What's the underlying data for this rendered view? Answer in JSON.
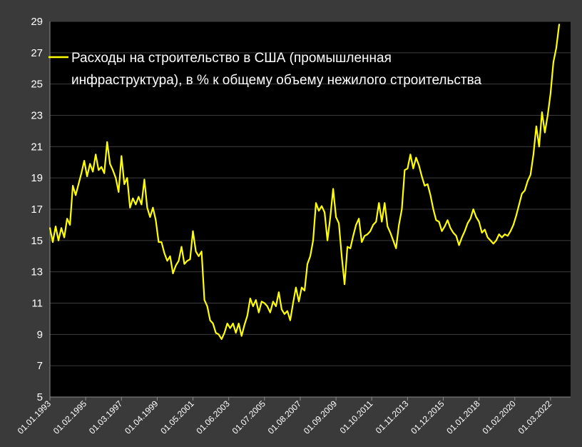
{
  "chart_data": {
    "type": "line",
    "title": "",
    "xlabel": "",
    "ylabel": "",
    "ylim": [
      5,
      29
    ],
    "yticks": [
      5,
      7,
      9,
      11,
      13,
      15,
      17,
      19,
      21,
      23,
      25,
      27,
      29
    ],
    "xtick_labels": [
      "01.01.1993",
      "01.02.1995",
      "01.03.1997",
      "01.04.1999",
      "01.05.2001",
      "01.06.2003",
      "01.07.2005",
      "01.08.2007",
      "01.09.2009",
      "01.10.2011",
      "01.11.2013",
      "01.12.2015",
      "01.01.2018",
      "01.02.2020",
      "01.03.2022"
    ],
    "x_range": [
      "1993-01",
      "2023-05"
    ],
    "grid": "horizontal",
    "legend_position": "top-left",
    "colors": {
      "background": "#3a3a3a",
      "plot_area": "#000000",
      "series": "#ffff00",
      "grid": "#3c3c3c",
      "text": "#ffffff"
    },
    "series": [
      {
        "name": "Расходы на строительство в США (промышленная инфраструктура), в % к общему объему нежилого строительства",
        "legend_lines": [
          "Расходы на строительство в США (промышленная",
          "инфраструктура), в % к общему объему нежилого строительства"
        ],
        "points": [
          [
            "1993-01",
            15.8
          ],
          [
            "1993-03",
            14.9
          ],
          [
            "1993-05",
            15.9
          ],
          [
            "1993-07",
            15.0
          ],
          [
            "1993-09",
            15.8
          ],
          [
            "1993-11",
            15.2
          ],
          [
            "1994-01",
            16.4
          ],
          [
            "1994-03",
            16.0
          ],
          [
            "1994-05",
            18.5
          ],
          [
            "1994-07",
            17.9
          ],
          [
            "1994-09",
            18.6
          ],
          [
            "1994-11",
            19.3
          ],
          [
            "1995-01",
            20.1
          ],
          [
            "1995-03",
            19.1
          ],
          [
            "1995-05",
            19.9
          ],
          [
            "1995-07",
            19.4
          ],
          [
            "1995-09",
            20.5
          ],
          [
            "1995-11",
            19.5
          ],
          [
            "1996-01",
            19.7
          ],
          [
            "1996-03",
            19.3
          ],
          [
            "1996-05",
            21.3
          ],
          [
            "1996-07",
            19.9
          ],
          [
            "1996-09",
            19.5
          ],
          [
            "1996-11",
            19.0
          ],
          [
            "1997-01",
            18.1
          ],
          [
            "1997-03",
            20.4
          ],
          [
            "1997-05",
            18.6
          ],
          [
            "1997-07",
            19.0
          ],
          [
            "1997-09",
            17.1
          ],
          [
            "1997-11",
            17.7
          ],
          [
            "1998-01",
            17.3
          ],
          [
            "1998-03",
            17.8
          ],
          [
            "1998-05",
            17.3
          ],
          [
            "1998-07",
            18.9
          ],
          [
            "1998-09",
            17.1
          ],
          [
            "1998-11",
            16.5
          ],
          [
            "1999-01",
            17.1
          ],
          [
            "1999-03",
            16.3
          ],
          [
            "1999-05",
            14.9
          ],
          [
            "1999-07",
            14.9
          ],
          [
            "1999-09",
            14.2
          ],
          [
            "1999-11",
            13.7
          ],
          [
            "2000-01",
            14.0
          ],
          [
            "2000-03",
            12.9
          ],
          [
            "2000-05",
            13.4
          ],
          [
            "2000-07",
            13.7
          ],
          [
            "2000-09",
            14.6
          ],
          [
            "2000-11",
            13.5
          ],
          [
            "2001-01",
            13.7
          ],
          [
            "2001-03",
            13.8
          ],
          [
            "2001-05",
            15.6
          ],
          [
            "2001-07",
            14.3
          ],
          [
            "2001-09",
            14.0
          ],
          [
            "2001-11",
            14.3
          ],
          [
            "2002-01",
            11.2
          ],
          [
            "2002-03",
            10.8
          ],
          [
            "2002-05",
            9.9
          ],
          [
            "2002-07",
            9.7
          ],
          [
            "2002-09",
            9.1
          ],
          [
            "2002-11",
            9.0
          ],
          [
            "2003-01",
            8.7
          ],
          [
            "2003-03",
            9.1
          ],
          [
            "2003-05",
            9.7
          ],
          [
            "2003-07",
            9.4
          ],
          [
            "2003-09",
            9.7
          ],
          [
            "2003-11",
            9.1
          ],
          [
            "2004-01",
            9.7
          ],
          [
            "2004-03",
            8.9
          ],
          [
            "2004-05",
            9.6
          ],
          [
            "2004-07",
            10.2
          ],
          [
            "2004-09",
            11.3
          ],
          [
            "2004-11",
            10.8
          ],
          [
            "2005-01",
            11.2
          ],
          [
            "2005-03",
            10.4
          ],
          [
            "2005-05",
            11.1
          ],
          [
            "2005-07",
            11.0
          ],
          [
            "2005-09",
            10.8
          ],
          [
            "2005-11",
            10.4
          ],
          [
            "2006-01",
            11.1
          ],
          [
            "2006-03",
            10.8
          ],
          [
            "2006-05",
            11.7
          ],
          [
            "2006-07",
            10.6
          ],
          [
            "2006-09",
            10.3
          ],
          [
            "2006-11",
            10.5
          ],
          [
            "2007-01",
            9.9
          ],
          [
            "2007-03",
            11.0
          ],
          [
            "2007-05",
            12.0
          ],
          [
            "2007-07",
            11.1
          ],
          [
            "2007-09",
            12.0
          ],
          [
            "2007-11",
            11.8
          ],
          [
            "2008-01",
            13.5
          ],
          [
            "2008-03",
            14.0
          ],
          [
            "2008-05",
            15.0
          ],
          [
            "2008-07",
            17.4
          ],
          [
            "2008-09",
            16.9
          ],
          [
            "2008-11",
            17.2
          ],
          [
            "2009-01",
            16.8
          ],
          [
            "2009-03",
            15.0
          ],
          [
            "2009-05",
            16.5
          ],
          [
            "2009-07",
            18.3
          ],
          [
            "2009-09",
            16.5
          ],
          [
            "2009-11",
            16.1
          ],
          [
            "2010-01",
            14.0
          ],
          [
            "2010-03",
            12.2
          ],
          [
            "2010-05",
            14.6
          ],
          [
            "2010-07",
            14.5
          ],
          [
            "2010-09",
            15.3
          ],
          [
            "2010-11",
            16.0
          ],
          [
            "2011-01",
            16.4
          ],
          [
            "2011-03",
            14.9
          ],
          [
            "2011-05",
            15.3
          ],
          [
            "2011-07",
            15.4
          ],
          [
            "2011-09",
            15.6
          ],
          [
            "2011-11",
            16.0
          ],
          [
            "2012-01",
            16.2
          ],
          [
            "2012-03",
            17.4
          ],
          [
            "2012-05",
            16.2
          ],
          [
            "2012-07",
            17.4
          ],
          [
            "2012-09",
            15.9
          ],
          [
            "2012-11",
            15.5
          ],
          [
            "2013-01",
            15.0
          ],
          [
            "2013-03",
            14.5
          ],
          [
            "2013-05",
            16.0
          ],
          [
            "2013-07",
            17.0
          ],
          [
            "2013-09",
            19.5
          ],
          [
            "2013-11",
            19.6
          ],
          [
            "2014-01",
            20.5
          ],
          [
            "2014-03",
            19.6
          ],
          [
            "2014-05",
            20.3
          ],
          [
            "2014-07",
            19.8
          ],
          [
            "2014-09",
            19.1
          ],
          [
            "2014-11",
            18.5
          ],
          [
            "2015-01",
            18.6
          ],
          [
            "2015-03",
            17.9
          ],
          [
            "2015-05",
            17.0
          ],
          [
            "2015-07",
            16.3
          ],
          [
            "2015-09",
            16.2
          ],
          [
            "2015-11",
            15.6
          ],
          [
            "2016-01",
            15.9
          ],
          [
            "2016-03",
            16.3
          ],
          [
            "2016-05",
            15.8
          ],
          [
            "2016-07",
            15.5
          ],
          [
            "2016-09",
            15.3
          ],
          [
            "2016-11",
            14.7
          ],
          [
            "2017-01",
            15.2
          ],
          [
            "2017-03",
            15.6
          ],
          [
            "2017-05",
            16.1
          ],
          [
            "2017-07",
            16.4
          ],
          [
            "2017-09",
            17.0
          ],
          [
            "2017-11",
            16.5
          ],
          [
            "2018-01",
            16.2
          ],
          [
            "2018-03",
            15.5
          ],
          [
            "2018-05",
            15.7
          ],
          [
            "2018-07",
            15.2
          ],
          [
            "2018-09",
            15.0
          ],
          [
            "2018-11",
            14.8
          ],
          [
            "2019-01",
            15.0
          ],
          [
            "2019-03",
            15.4
          ],
          [
            "2019-05",
            15.2
          ],
          [
            "2019-07",
            15.4
          ],
          [
            "2019-09",
            15.3
          ],
          [
            "2019-11",
            15.6
          ],
          [
            "2020-01",
            16.0
          ],
          [
            "2020-03",
            16.6
          ],
          [
            "2020-05",
            17.3
          ],
          [
            "2020-07",
            18.0
          ],
          [
            "2020-09",
            18.2
          ],
          [
            "2020-11",
            18.8
          ],
          [
            "2021-01",
            19.2
          ],
          [
            "2021-03",
            20.5
          ],
          [
            "2021-05",
            22.3
          ],
          [
            "2021-07",
            21.0
          ],
          [
            "2021-09",
            23.2
          ],
          [
            "2021-11",
            21.9
          ],
          [
            "2022-01",
            23.0
          ],
          [
            "2022-03",
            24.4
          ],
          [
            "2022-05",
            26.4
          ],
          [
            "2022-07",
            27.3
          ],
          [
            "2022-09",
            28.8
          ]
        ]
      }
    ]
  }
}
